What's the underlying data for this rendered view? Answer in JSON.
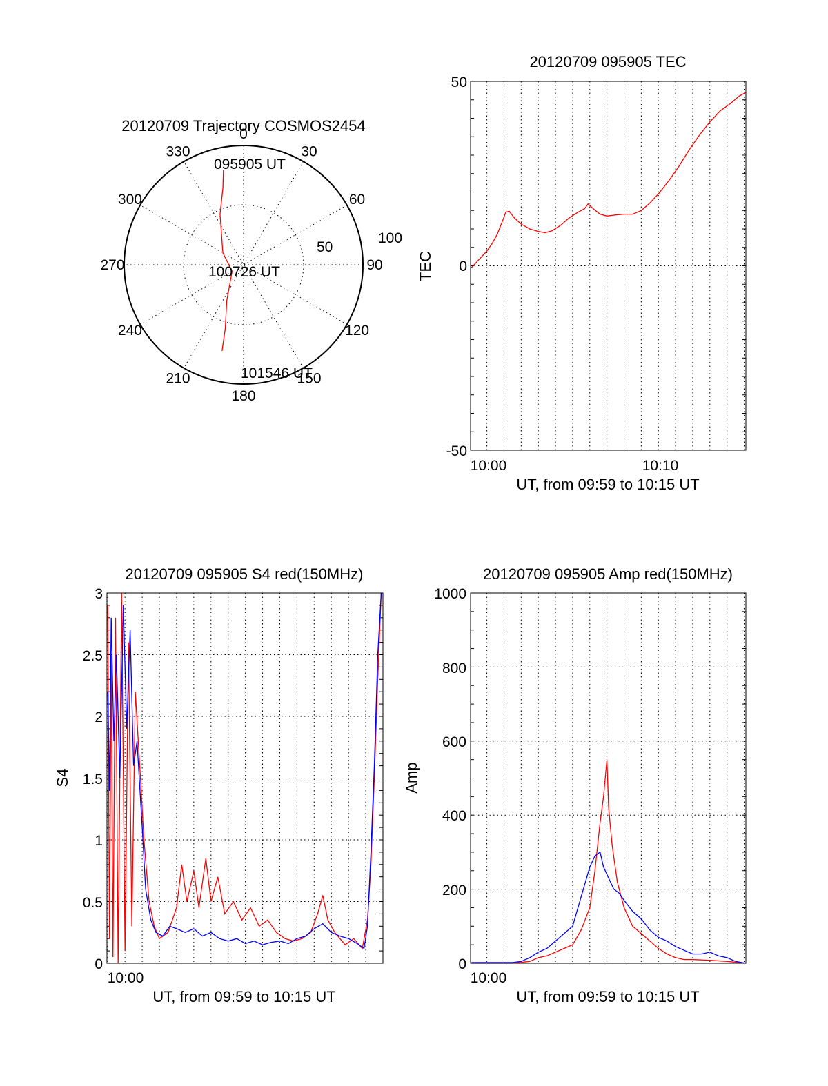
{
  "colors": {
    "red": "#ff0000",
    "blue": "#0000ff",
    "axis": "#000000"
  },
  "chart_data": [
    {
      "id": "polar",
      "type": "polar",
      "title": "20120709 Trajectory COSMOS2454",
      "angle_labels": [
        "0",
        "30",
        "60",
        "90",
        "120",
        "150",
        "180",
        "210",
        "240",
        "270",
        "300",
        "330"
      ],
      "radial_labels": [
        "50",
        "100"
      ],
      "trajectory": [
        {
          "az": 348,
          "el": 17
        },
        {
          "az": 345,
          "el": 30
        },
        {
          "az": 335,
          "el": 48
        },
        {
          "az": 300,
          "el": 72
        },
        {
          "az": 240,
          "el": 80
        },
        {
          "az": 205,
          "el": 60
        },
        {
          "az": 196,
          "el": 40
        },
        {
          "az": 194,
          "el": 23
        }
      ],
      "annotations": [
        "095905 UT",
        "100726 UT",
        "101546 UT"
      ]
    },
    {
      "id": "tec",
      "type": "line",
      "title": "20120709 095905 TEC",
      "xlabel": "UT, from 09:59 to 10:15 UT",
      "ylabel": "TEC",
      "x_tick_labels": [
        "10:00",
        "10:10"
      ],
      "y_tick_labels": [
        "50",
        "0",
        "-50"
      ],
      "xlim": [
        -0.95,
        15.1
      ],
      "ylim": [
        -50,
        50
      ],
      "series": [
        {
          "color": "red",
          "points": [
            [
              -0.9,
              -0.5
            ],
            [
              -0.6,
              1
            ],
            [
              -0.3,
              2.5
            ],
            [
              0,
              4
            ],
            [
              0.3,
              6
            ],
            [
              0.6,
              8.5
            ],
            [
              0.9,
              12
            ],
            [
              1.1,
              14.5
            ],
            [
              1.3,
              14.8
            ],
            [
              1.6,
              13
            ],
            [
              2,
              11.3
            ],
            [
              2.5,
              10
            ],
            [
              3,
              9.3
            ],
            [
              3.4,
              9
            ],
            [
              3.8,
              9.5
            ],
            [
              4.3,
              11
            ],
            [
              4.8,
              13
            ],
            [
              5.3,
              14.5
            ],
            [
              5.7,
              15.5
            ],
            [
              5.9,
              16.8
            ],
            [
              6.2,
              15.5
            ],
            [
              6.6,
              14
            ],
            [
              7,
              13.5
            ],
            [
              7.5,
              13.8
            ],
            [
              8,
              14
            ],
            [
              8.5,
              14
            ],
            [
              9,
              15
            ],
            [
              9.5,
              17
            ],
            [
              10,
              19.5
            ],
            [
              10.6,
              23
            ],
            [
              11.2,
              27
            ],
            [
              11.8,
              31.5
            ],
            [
              12.4,
              35.5
            ],
            [
              13,
              39
            ],
            [
              13.6,
              42
            ],
            [
              14.2,
              44
            ],
            [
              14.7,
              46
            ],
            [
              15.1,
              47
            ]
          ]
        }
      ]
    },
    {
      "id": "s4",
      "type": "line",
      "title": "20120709 095905 S4 red(150MHz)",
      "xlabel": "UT, from 09:59 to 10:15 UT",
      "ylabel": "S4",
      "x_tick_labels": [
        "10:00"
      ],
      "y_tick_labels": [
        "0",
        "0.5",
        "1",
        "1.5",
        "2",
        "2.5",
        "3"
      ],
      "xlim": [
        -0.05,
        16
      ],
      "ylim": [
        0,
        3
      ],
      "series": [
        {
          "color": "red",
          "points": [
            [
              0,
              2.9
            ],
            [
              0.1,
              0.2
            ],
            [
              0.2,
              2.5
            ],
            [
              0.3,
              0.05
            ],
            [
              0.45,
              2.8
            ],
            [
              0.6,
              0
            ],
            [
              0.8,
              3
            ],
            [
              1,
              0.1
            ],
            [
              1.2,
              2.6
            ],
            [
              1.4,
              0.3
            ],
            [
              1.6,
              2.2
            ],
            [
              1.9,
              1.5
            ],
            [
              2.1,
              1
            ],
            [
              2.4,
              0.5
            ],
            [
              2.7,
              0.3
            ],
            [
              3,
              0.2
            ],
            [
              3.5,
              0.25
            ],
            [
              4,
              0.45
            ],
            [
              4.3,
              0.8
            ],
            [
              4.6,
              0.5
            ],
            [
              5,
              0.75
            ],
            [
              5.3,
              0.45
            ],
            [
              5.7,
              0.85
            ],
            [
              6,
              0.5
            ],
            [
              6.4,
              0.7
            ],
            [
              6.8,
              0.4
            ],
            [
              7.3,
              0.5
            ],
            [
              7.8,
              0.35
            ],
            [
              8.3,
              0.45
            ],
            [
              8.8,
              0.3
            ],
            [
              9.3,
              0.35
            ],
            [
              9.8,
              0.25
            ],
            [
              10.3,
              0.2
            ],
            [
              10.8,
              0.18
            ],
            [
              11.3,
              0.2
            ],
            [
              11.8,
              0.25
            ],
            [
              12.2,
              0.4
            ],
            [
              12.5,
              0.55
            ],
            [
              12.8,
              0.35
            ],
            [
              13.2,
              0.25
            ],
            [
              13.8,
              0.15
            ],
            [
              14.3,
              0.2
            ],
            [
              14.8,
              0.12
            ],
            [
              15.1,
              0.35
            ],
            [
              15.3,
              0.8
            ],
            [
              15.5,
              1.5
            ],
            [
              15.7,
              2.3
            ],
            [
              15.9,
              3
            ]
          ]
        },
        {
          "color": "blue",
          "points": [
            [
              0,
              2.2
            ],
            [
              0.1,
              1.4
            ],
            [
              0.2,
              2.8
            ],
            [
              0.35,
              1.8
            ],
            [
              0.5,
              2.5
            ],
            [
              0.7,
              1.5
            ],
            [
              0.9,
              2.9
            ],
            [
              1.1,
              1.9
            ],
            [
              1.3,
              2.7
            ],
            [
              1.5,
              1.6
            ],
            [
              1.7,
              1.8
            ],
            [
              2,
              1.1
            ],
            [
              2.2,
              0.6
            ],
            [
              2.5,
              0.35
            ],
            [
              2.8,
              0.25
            ],
            [
              3.2,
              0.22
            ],
            [
              3.6,
              0.3
            ],
            [
              4,
              0.28
            ],
            [
              4.5,
              0.25
            ],
            [
              5,
              0.28
            ],
            [
              5.5,
              0.22
            ],
            [
              6,
              0.25
            ],
            [
              6.5,
              0.2
            ],
            [
              7,
              0.18
            ],
            [
              7.5,
              0.2
            ],
            [
              8,
              0.16
            ],
            [
              8.5,
              0.18
            ],
            [
              9,
              0.15
            ],
            [
              9.5,
              0.17
            ],
            [
              10,
              0.18
            ],
            [
              10.5,
              0.16
            ],
            [
              11,
              0.2
            ],
            [
              11.5,
              0.22
            ],
            [
              12,
              0.28
            ],
            [
              12.5,
              0.32
            ],
            [
              13,
              0.25
            ],
            [
              13.5,
              0.22
            ],
            [
              14,
              0.2
            ],
            [
              14.5,
              0.16
            ],
            [
              14.9,
              0.12
            ],
            [
              15.1,
              0.3
            ],
            [
              15.3,
              0.9
            ],
            [
              15.5,
              1.6
            ],
            [
              15.7,
              2.5
            ],
            [
              15.9,
              3
            ]
          ]
        }
      ]
    },
    {
      "id": "amp",
      "type": "line",
      "title": "20120709 095905 Amp red(150MHz)",
      "xlabel": "UT, from 09:59 to 10:15 UT",
      "ylabel": "Amp",
      "x_tick_labels": [
        "10:00"
      ],
      "y_tick_labels": [
        "0",
        "200",
        "400",
        "600",
        "800",
        "1000"
      ],
      "xlim": [
        -0.95,
        15.1
      ],
      "ylim": [
        0,
        1000
      ],
      "series": [
        {
          "color": "red",
          "points": [
            [
              -0.9,
              0
            ],
            [
              1.5,
              0
            ],
            [
              2.5,
              5
            ],
            [
              3,
              15
            ],
            [
              3.5,
              20
            ],
            [
              4,
              30
            ],
            [
              4.5,
              40
            ],
            [
              5,
              50
            ],
            [
              5.5,
              90
            ],
            [
              6,
              150
            ],
            [
              6.3,
              250
            ],
            [
              6.6,
              380
            ],
            [
              6.8,
              450
            ],
            [
              7,
              550
            ],
            [
              7.1,
              420
            ],
            [
              7.3,
              320
            ],
            [
              7.6,
              220
            ],
            [
              8,
              150
            ],
            [
              8.5,
              100
            ],
            [
              9,
              80
            ],
            [
              9.5,
              60
            ],
            [
              10,
              40
            ],
            [
              10.5,
              25
            ],
            [
              11,
              15
            ],
            [
              11.5,
              10
            ],
            [
              12,
              10
            ],
            [
              13,
              8
            ],
            [
              14,
              5
            ],
            [
              15.1,
              0
            ]
          ]
        },
        {
          "color": "blue",
          "points": [
            [
              -0.9,
              2
            ],
            [
              1.5,
              2
            ],
            [
              2,
              5
            ],
            [
              2.5,
              15
            ],
            [
              3,
              30
            ],
            [
              3.5,
              40
            ],
            [
              4,
              60
            ],
            [
              4.5,
              80
            ],
            [
              5,
              100
            ],
            [
              5.5,
              180
            ],
            [
              6,
              260
            ],
            [
              6.3,
              290
            ],
            [
              6.6,
              300
            ],
            [
              6.8,
              260
            ],
            [
              7.1,
              230
            ],
            [
              7.4,
              200
            ],
            [
              7.7,
              190
            ],
            [
              8,
              170
            ],
            [
              8.5,
              140
            ],
            [
              9,
              120
            ],
            [
              9.5,
              90
            ],
            [
              10,
              70
            ],
            [
              10.5,
              60
            ],
            [
              11,
              45
            ],
            [
              11.5,
              35
            ],
            [
              12,
              25
            ],
            [
              12.5,
              25
            ],
            [
              13,
              30
            ],
            [
              13.5,
              20
            ],
            [
              14,
              15
            ],
            [
              14.5,
              5
            ],
            [
              15.1,
              0
            ]
          ]
        }
      ]
    }
  ]
}
